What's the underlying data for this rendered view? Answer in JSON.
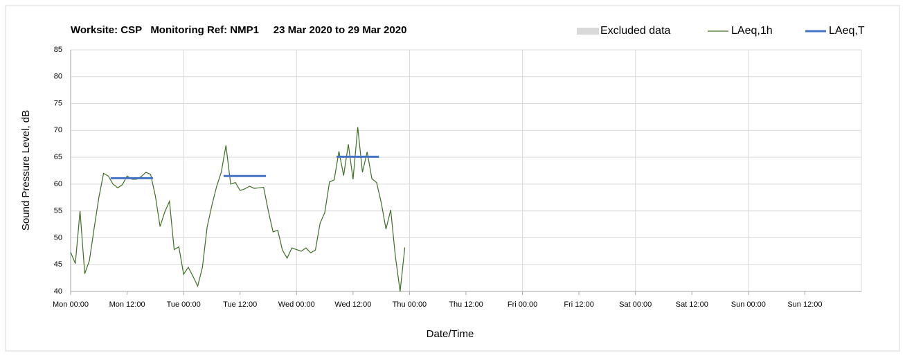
{
  "chart_data": {
    "type": "line",
    "title": "Worksite: CSP   Monitoring Ref: NMP1     23 Mar 2020 to 29 Mar 2020",
    "x_label": "Date/Time",
    "y_label": "Sound Pressure Level, dB",
    "xlim": [
      0,
      168
    ],
    "xticks": [
      {
        "value": 0,
        "label": "Mon 00:00"
      },
      {
        "value": 12,
        "label": "Mon 12:00"
      },
      {
        "value": 24,
        "label": "Tue 00:00"
      },
      {
        "value": 36,
        "label": "Tue 12:00"
      },
      {
        "value": 48,
        "label": "Wed 00:00"
      },
      {
        "value": 60,
        "label": "Wed 12:00"
      },
      {
        "value": 72,
        "label": "Thu 00:00"
      },
      {
        "value": 84,
        "label": "Thu 12:00"
      },
      {
        "value": 96,
        "label": "Fri 00:00"
      },
      {
        "value": 108,
        "label": "Fri 12:00"
      },
      {
        "value": 120,
        "label": "Sat 00:00"
      },
      {
        "value": 132,
        "label": "Sat 12:00"
      },
      {
        "value": 144,
        "label": "Sun 00:00"
      },
      {
        "value": 156,
        "label": "Sun 12:00"
      }
    ],
    "ylim": [
      40,
      85
    ],
    "yticks": [
      40,
      45,
      50,
      55,
      60,
      65,
      70,
      75,
      80,
      85
    ],
    "grid": true,
    "legend": "top-right",
    "series": [
      {
        "name": "Excluded data",
        "color": "#d9d9d9",
        "style": "area",
        "x": [],
        "values": []
      },
      {
        "name": "LAeq,1h",
        "color": "#3b6e22",
        "style": "thin",
        "x": [
          0,
          1,
          2,
          3,
          4,
          5,
          6,
          7,
          8,
          9,
          10,
          11,
          12,
          13,
          14,
          15,
          16,
          17,
          18,
          19,
          20,
          21,
          22,
          23,
          24,
          25,
          26,
          27,
          28,
          29,
          30,
          31,
          32,
          33,
          34,
          35,
          36,
          37,
          38,
          39,
          40,
          41,
          42,
          43,
          44,
          45,
          46,
          47,
          48,
          49,
          50,
          51,
          52,
          53,
          54,
          55,
          56,
          57,
          58,
          59,
          60,
          61,
          62,
          63,
          64,
          65,
          66,
          67,
          68,
          69,
          70,
          71
        ],
        "values": [
          47.3,
          45.2,
          55.0,
          43.3,
          45.8,
          51.8,
          57.5,
          62.0,
          61.5,
          60.0,
          59.3,
          59.9,
          61.5,
          60.9,
          60.9,
          61.4,
          62.2,
          61.8,
          57.8,
          52.1,
          54.8,
          56.8,
          47.8,
          48.3,
          43.2,
          44.5,
          42.8,
          41.0,
          44.5,
          52.0,
          56.0,
          59.5,
          62.2,
          67.2,
          60.0,
          60.3,
          58.8,
          59.1,
          59.6,
          59.2,
          59.3,
          59.4,
          55.0,
          51.1,
          51.4,
          47.7,
          46.2,
          48.1,
          47.8,
          47.5,
          48.1,
          47.2,
          47.7,
          52.7,
          54.7,
          60.4,
          60.8,
          66.1,
          61.6,
          67.4,
          60.9,
          70.6,
          62.2,
          66.0,
          61.0,
          60.3,
          56.5,
          51.6,
          55.2,
          46.5,
          40.0,
          48.2
        ]
      },
      {
        "name": "LAeq,T",
        "color": "#4472c4",
        "style": "thick",
        "x": [
          8.5,
          17.5,
          25,
          32.5,
          41.5,
          49,
          56.5,
          65.5
        ],
        "values": [
          61.1,
          61.1,
          null,
          61.5,
          61.5,
          null,
          65.1,
          65.1
        ]
      }
    ]
  }
}
